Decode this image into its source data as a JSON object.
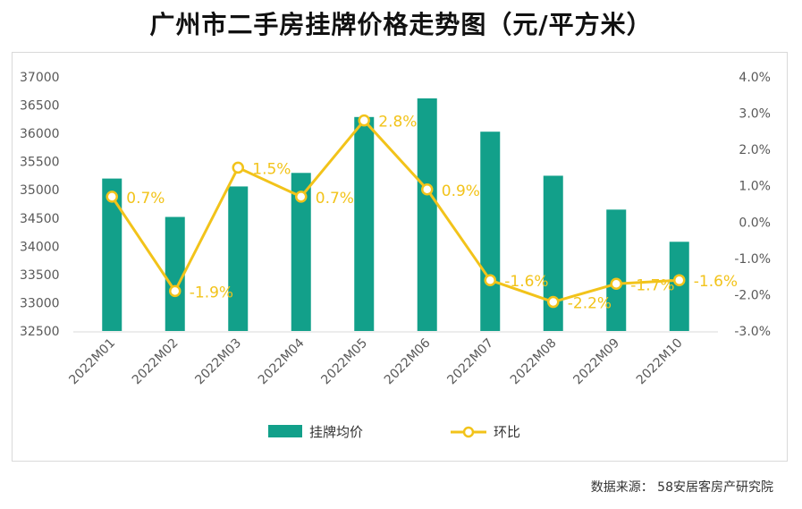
{
  "title": "广州市二手房挂牌价格走势图（元/平方米）",
  "source": "数据来源：  58安居客房产研究院",
  "colors": {
    "bar": "#12a08a",
    "line": "#f2c31a",
    "axis_text": "#595959",
    "label": "#f2c31a"
  },
  "chart_data": {
    "type": "bar+line",
    "categories": [
      "2022M01",
      "2022M02",
      "2022M03",
      "2022M04",
      "2022M05",
      "2022M06",
      "2022M07",
      "2022M08",
      "2022M09",
      "2022M10"
    ],
    "series": [
      {
        "name": "挂牌均价",
        "type": "bar",
        "axis": "left",
        "values": [
          35200,
          34520,
          35060,
          35300,
          36290,
          36620,
          36030,
          35250,
          34650,
          34080
        ]
      },
      {
        "name": "环比",
        "type": "line",
        "axis": "right",
        "values": [
          0.7,
          -1.9,
          1.5,
          0.7,
          2.8,
          0.9,
          -1.6,
          -2.2,
          -1.7,
          -1.6
        ],
        "labels": [
          "0.7%",
          "-1.9%",
          "1.5%",
          "0.7%",
          "2.8%",
          "0.9%",
          "-1.6%",
          "-2.2%",
          "-1.7%",
          "-1.6%"
        ]
      }
    ],
    "left_axis": {
      "min": 32500,
      "max": 37000,
      "step": 500,
      "ticks": [
        "32500",
        "33000",
        "33500",
        "34000",
        "34500",
        "35000",
        "35500",
        "36000",
        "36500",
        "37000"
      ]
    },
    "right_axis": {
      "min": -3.0,
      "max": 4.0,
      "step": 1.0,
      "ticks": [
        "-3.0%",
        "-2.0%",
        "-1.0%",
        "0.0%",
        "1.0%",
        "2.0%",
        "3.0%",
        "4.0%"
      ]
    },
    "legend": [
      "挂牌均价",
      "环比"
    ],
    "legend_position": "bottom-center"
  }
}
